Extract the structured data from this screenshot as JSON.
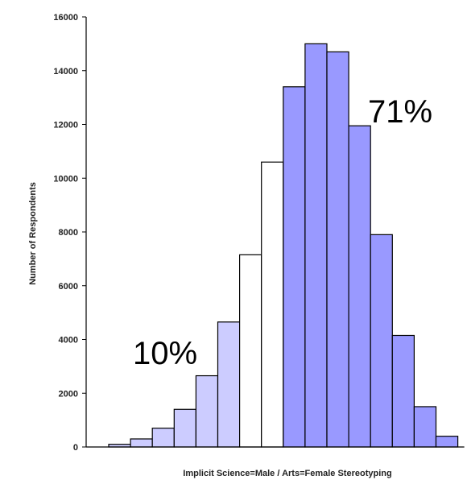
{
  "chart_data": {
    "type": "bar",
    "title": "",
    "xlabel": "Implicit Science=Male / Arts=Female Stereotyping",
    "ylabel": "Number of Respondents",
    "ylim": [
      0,
      16000
    ],
    "yticks": [
      "0",
      "2000",
      "4000",
      "6000",
      "8000",
      "10000",
      "12000",
      "14000",
      "16000"
    ],
    "grid": false,
    "legend": "none",
    "values": [
      100,
      300,
      700,
      1400,
      2650,
      4650,
      7150,
      10600,
      13400,
      15000,
      14700,
      11950,
      7900,
      4150,
      1500,
      400
    ],
    "bar_groups": [
      "light",
      "light",
      "light",
      "light",
      "light",
      "light",
      "white",
      "white",
      "dark",
      "dark",
      "dark",
      "dark",
      "dark",
      "dark",
      "dark",
      "dark"
    ],
    "colors": {
      "light": "#ccccff",
      "white": "#ffffff",
      "dark": "#9999ff",
      "stroke": "#000000"
    },
    "annotations": [
      {
        "text": "10%",
        "region": "light"
      },
      {
        "text": "71%",
        "region": "dark"
      }
    ]
  }
}
